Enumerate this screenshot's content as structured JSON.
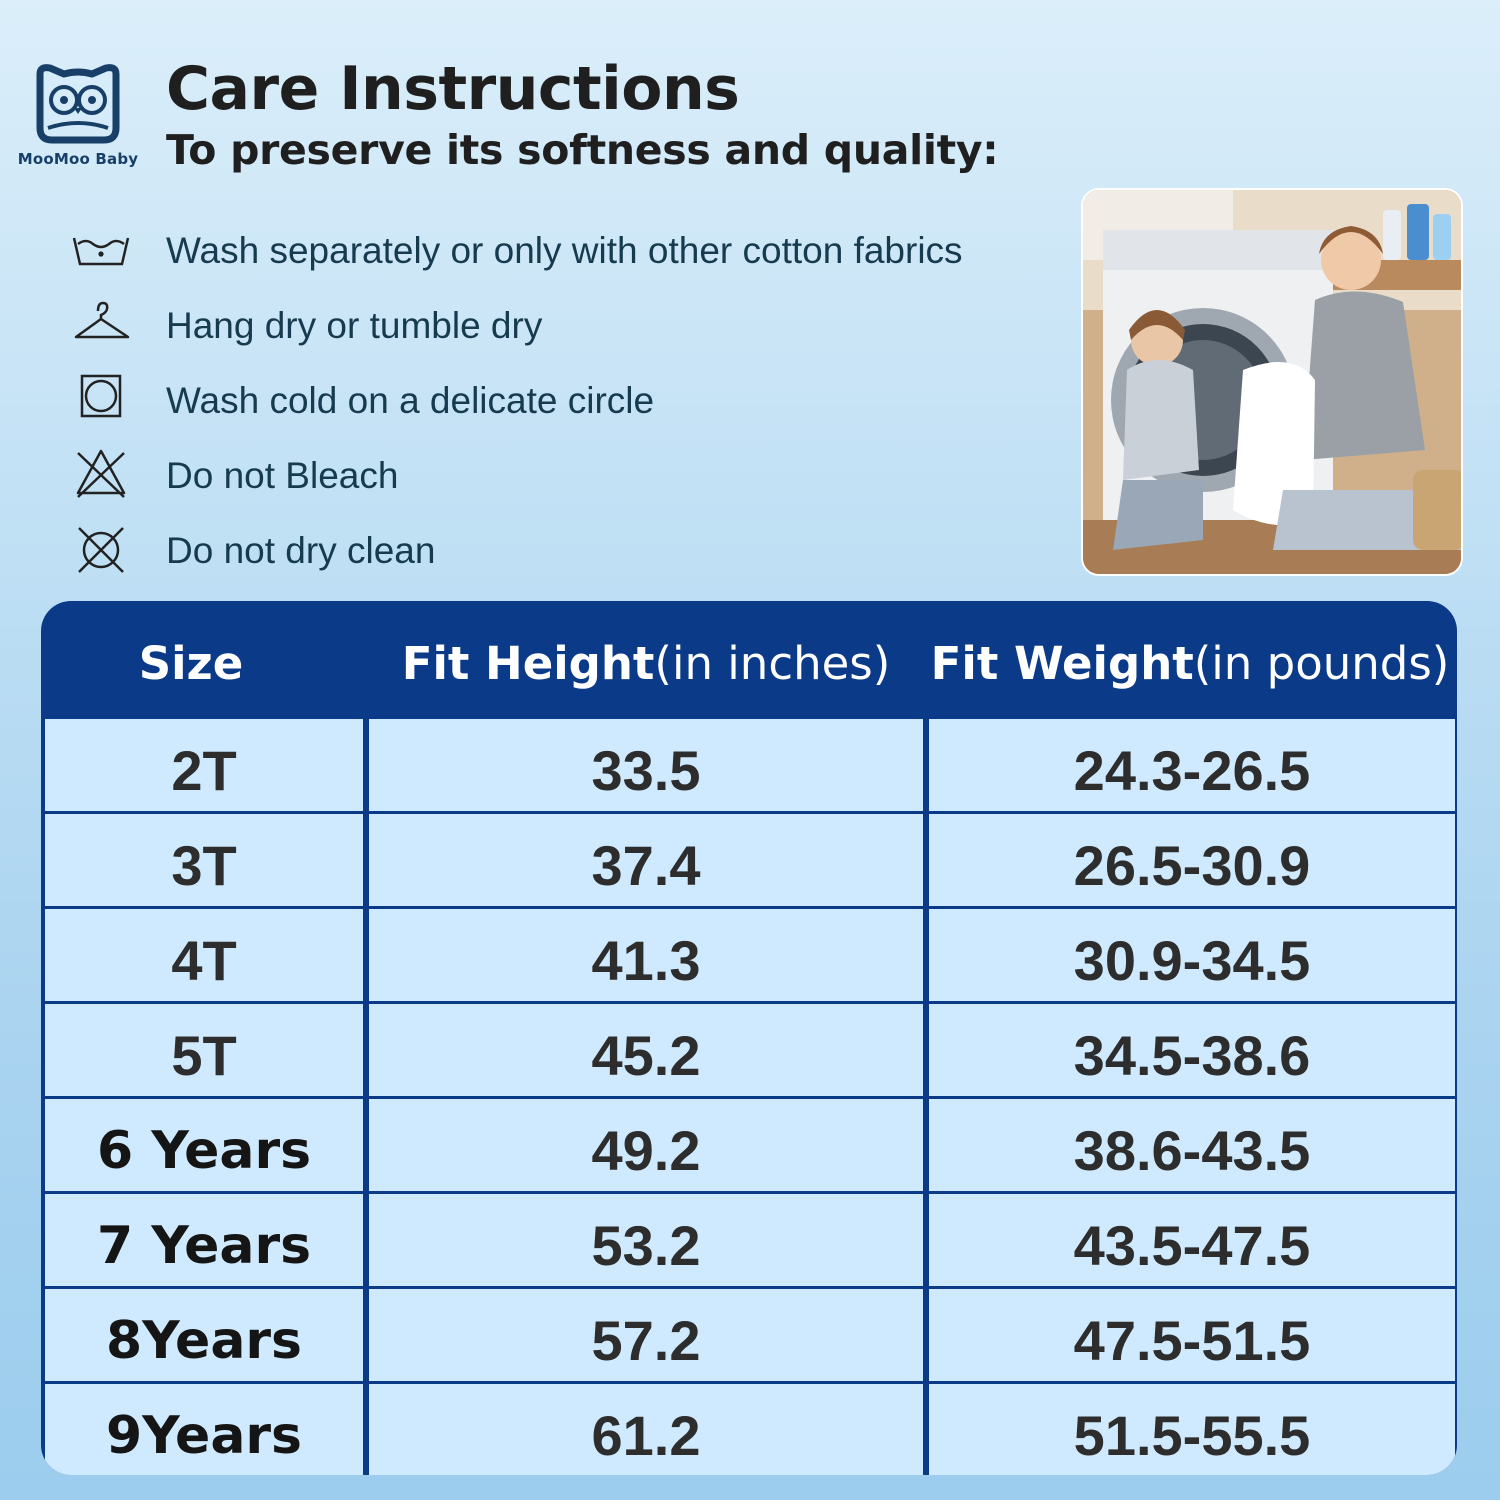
{
  "brand": {
    "name": "MooMoo Baby"
  },
  "header": {
    "title": "Care Instructions",
    "subtitle": "To preserve its softness and quality:"
  },
  "care": {
    "items": [
      {
        "icon": "wash-tub-icon",
        "text": "Wash separately or only with other cotton fabrics"
      },
      {
        "icon": "hanger-icon",
        "text": "Hang dry or tumble dry"
      },
      {
        "icon": "tumble-dry-icon",
        "text": "Wash cold on a delicate circle"
      },
      {
        "icon": "no-bleach-icon",
        "text": "Do not Bleach"
      },
      {
        "icon": "no-dry-clean-icon",
        "text": "Do not dry clean"
      }
    ]
  },
  "photo": {
    "description_icon": "laundry-photo"
  },
  "size_table": {
    "headers": {
      "size": "Size",
      "height_main": "Fit Height",
      "height_unit": "(in inches)",
      "weight_main": "Fit Weight",
      "weight_unit": "(in pounds)"
    },
    "rows": [
      {
        "size": "2T",
        "height": "33.5",
        "weight": "24.3-26.5"
      },
      {
        "size": "3T",
        "height": "37.4",
        "weight": "26.5-30.9"
      },
      {
        "size": "4T",
        "height": "41.3",
        "weight": "30.9-34.5"
      },
      {
        "size": "5T",
        "height": "45.2",
        "weight": "34.5-38.6"
      },
      {
        "size": "6 Years",
        "height": "49.2",
        "weight": "38.6-43.5"
      },
      {
        "size": "7 Years",
        "height": "53.2",
        "weight": "43.5-47.5"
      },
      {
        "size": "8Years",
        "height": "57.2",
        "weight": "47.5-51.5"
      },
      {
        "size": "9Years",
        "height": "61.2",
        "weight": "51.5-55.5"
      }
    ]
  },
  "colors": {
    "header_blue": "#0a3a88",
    "cell_bg": "#cfeaff",
    "care_text": "#163b4e",
    "title_text": "#1f1f1f"
  }
}
